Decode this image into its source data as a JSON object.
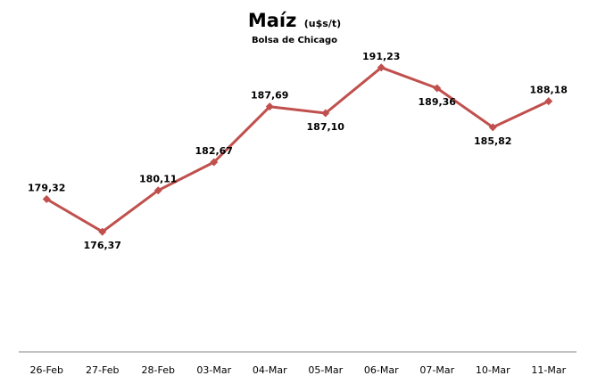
{
  "chart_data": {
    "type": "line",
    "title": "Maíz",
    "title_unit": "(u$s/t)",
    "subtitle": "Bolsa de Chicago",
    "categories": [
      "26-Feb",
      "27-Feb",
      "28-Feb",
      "03-Mar",
      "04-Mar",
      "05-Mar",
      "06-Mar",
      "07-Mar",
      "10-Mar",
      "11-Mar"
    ],
    "series": [
      {
        "values": [
          179.32,
          176.37,
          180.11,
          182.67,
          187.69,
          187.1,
          191.23,
          189.36,
          185.82,
          188.18
        ],
        "labels": [
          "179,32",
          "176,37",
          "180,11",
          "182,67",
          "187,69",
          "187,10",
          "191,23",
          "189,36",
          "185,82",
          "188,18"
        ],
        "label_positions": [
          "above",
          "below",
          "above",
          "above",
          "above",
          "below",
          "above",
          "below",
          "below",
          "above"
        ],
        "color": "#C0504D",
        "marker": "diamond"
      }
    ],
    "ylim": [
      165.5,
      192.5
    ],
    "grid": false,
    "legend": "none",
    "xlabel": "",
    "ylabel": ""
  }
}
